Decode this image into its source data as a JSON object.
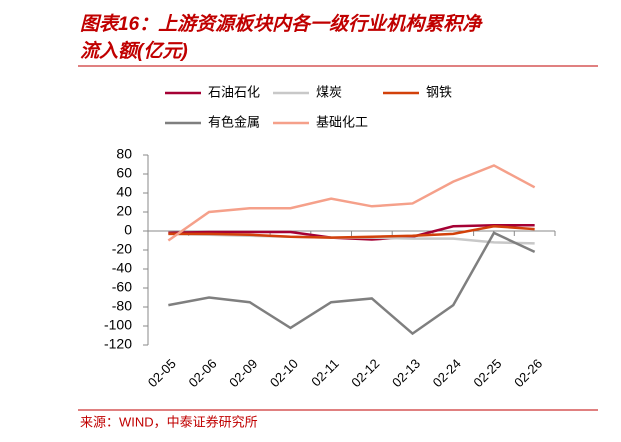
{
  "chart_data": {
    "type": "line",
    "title_lines": [
      "图表16：上游资源板块内各一级行业机构累积净",
      "流入额(亿元)"
    ],
    "source": "来源：WIND，中泰证券研究所",
    "categories": [
      "02-05",
      "02-06",
      "02-09",
      "02-10",
      "02-11",
      "02-12",
      "02-13",
      "02-24",
      "02-25",
      "02-26"
    ],
    "series": [
      {
        "name": "石油石化",
        "color": "#a50034",
        "values": [
          -2,
          -1,
          -1,
          -1,
          -7,
          -9,
          -6,
          5,
          6,
          6
        ]
      },
      {
        "name": "煤炭",
        "color": "#c8c8c8",
        "values": [
          -3,
          -4,
          -5,
          -6,
          -7,
          -7,
          -8,
          -8,
          -12,
          -13
        ]
      },
      {
        "name": "钢铁",
        "color": "#d2410a",
        "values": [
          -3,
          -3,
          -4,
          -6,
          -7,
          -6,
          -5,
          -3,
          5,
          2
        ]
      },
      {
        "name": "有色金属",
        "color": "#7f7f7f",
        "values": [
          -78,
          -70,
          -75,
          -102,
          -75,
          -71,
          -108,
          -78,
          -2,
          -22
        ]
      },
      {
        "name": "基础化工",
        "color": "#f5a08a",
        "values": [
          -10,
          20,
          24,
          24,
          34,
          26,
          29,
          52,
          69,
          46
        ]
      }
    ],
    "ylim": [
      -120,
      80
    ],
    "yticks": [
      -120,
      -100,
      -80,
      -60,
      -40,
      -20,
      0,
      20,
      40,
      60,
      80
    ]
  }
}
